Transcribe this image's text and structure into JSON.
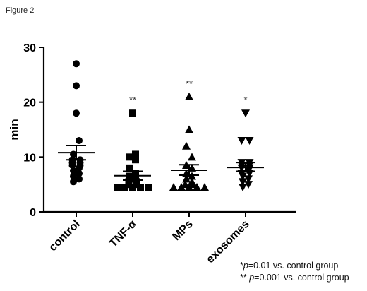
{
  "figure_label": "Figure 2",
  "chart_data": {
    "type": "scatter",
    "ylabel": "min",
    "xlabel": "",
    "ylim": [
      0,
      30
    ],
    "yticks": [
      0,
      10,
      20,
      30
    ],
    "categories": [
      "control",
      "TNF-α",
      "MPs",
      "exosomes"
    ],
    "significance": [
      "",
      "**",
      "**",
      "*"
    ],
    "series": [
      {
        "category": "control",
        "marker": "circle",
        "values": [
          27,
          23,
          18,
          13,
          10.5,
          9.5,
          9.5,
          9,
          9,
          8.5,
          8.5,
          8,
          7.5,
          7,
          6.5,
          6,
          5.5
        ],
        "mean": 10.8,
        "sem_low": 9.5,
        "sem_high": 12.1
      },
      {
        "category": "TNF-α",
        "marker": "square",
        "values": [
          18,
          10.5,
          10,
          9.5,
          8,
          7,
          6.5,
          6,
          5.5,
          5.5,
          5,
          5,
          4.5,
          4.5,
          4.5,
          4.5,
          4.5
        ],
        "mean": 6.6,
        "sem_low": 5.8,
        "sem_high": 7.4
      },
      {
        "category": "MPs",
        "marker": "triangle-up",
        "values": [
          21,
          15,
          12,
          10,
          8.5,
          8,
          7,
          6.5,
          6,
          5.5,
          5,
          5,
          4.5,
          4.5,
          4.5,
          4.5,
          4.5
        ],
        "mean": 7.6,
        "sem_low": 6.7,
        "sem_high": 8.6
      },
      {
        "category": "exosomes",
        "marker": "triangle-down",
        "values": [
          18,
          13,
          13,
          9,
          9,
          8.5,
          8.5,
          8,
          8,
          7.5,
          7,
          7,
          6.5,
          6,
          5.5,
          5,
          4.5
        ],
        "mean": 8.1,
        "sem_low": 7.4,
        "sem_high": 9.0
      }
    ]
  },
  "notes": [
    {
      "stars": "*",
      "p": "p",
      "text": "=0.01 vs. control group"
    },
    {
      "stars": "**",
      "p": "p",
      "text": "=0.001 vs. control group"
    }
  ]
}
